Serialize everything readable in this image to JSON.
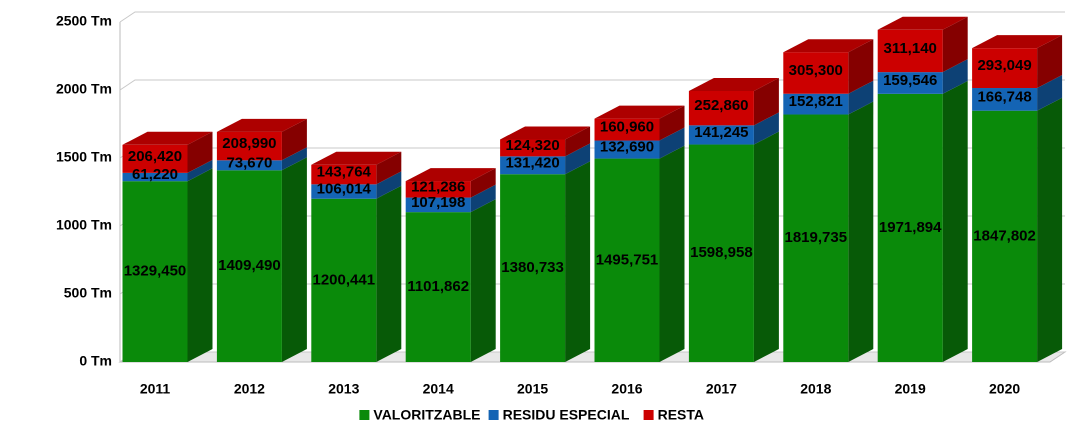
{
  "chart_data": {
    "type": "bar",
    "stacked": true,
    "categories": [
      "2011",
      "2012",
      "2013",
      "2014",
      "2015",
      "2016",
      "2017",
      "2018",
      "2019",
      "2020"
    ],
    "series": [
      {
        "name": "VALORITZABLE",
        "color": "#0a8a0a",
        "values": [
          1329.45,
          1409.49,
          1200.441,
          1101.862,
          1380.733,
          1495.751,
          1598.958,
          1819.735,
          1971.894,
          1847.802
        ],
        "value_labels": [
          "1329,450",
          "1409,490",
          "1200,441",
          "1101,862",
          "1380,733",
          "1495,751",
          "1598,958",
          "1819,735",
          "1971,894",
          "1847,802"
        ]
      },
      {
        "name": "RESIDU ESPECIAL",
        "color": "#1464b4",
        "values": [
          61.22,
          73.67,
          106.014,
          107.198,
          131.42,
          132.69,
          141.245,
          152.821,
          159.546,
          166.748
        ],
        "value_labels": [
          "61,220",
          "73,670",
          "106,014",
          "107,198",
          "131,420",
          "132,690",
          "141,245",
          "152,821",
          "159,546",
          "166,748"
        ]
      },
      {
        "name": "RESTA",
        "color": "#cc0000",
        "values": [
          206.42,
          208.99,
          143.764,
          121.286,
          124.32,
          160.96,
          252.86,
          305.3,
          311.14,
          293.049
        ],
        "value_labels": [
          "206,420",
          "208,990",
          "143,764",
          "121,286",
          "124,320",
          "160,960",
          "252,860",
          "305,300",
          "311,140",
          "293,049"
        ]
      }
    ],
    "ylim": [
      0,
      2500
    ],
    "yticks": [
      {
        "value": 0,
        "label": "0 Tm"
      },
      {
        "value": 500,
        "label": "500 Tm"
      },
      {
        "value": 1000,
        "label": "1000 Tm"
      },
      {
        "value": 1500,
        "label": "1500 Tm"
      },
      {
        "value": 2000,
        "label": "2000 Tm"
      },
      {
        "value": 2500,
        "label": "2500 Tm"
      }
    ],
    "grid": true,
    "legend": "bottom"
  }
}
